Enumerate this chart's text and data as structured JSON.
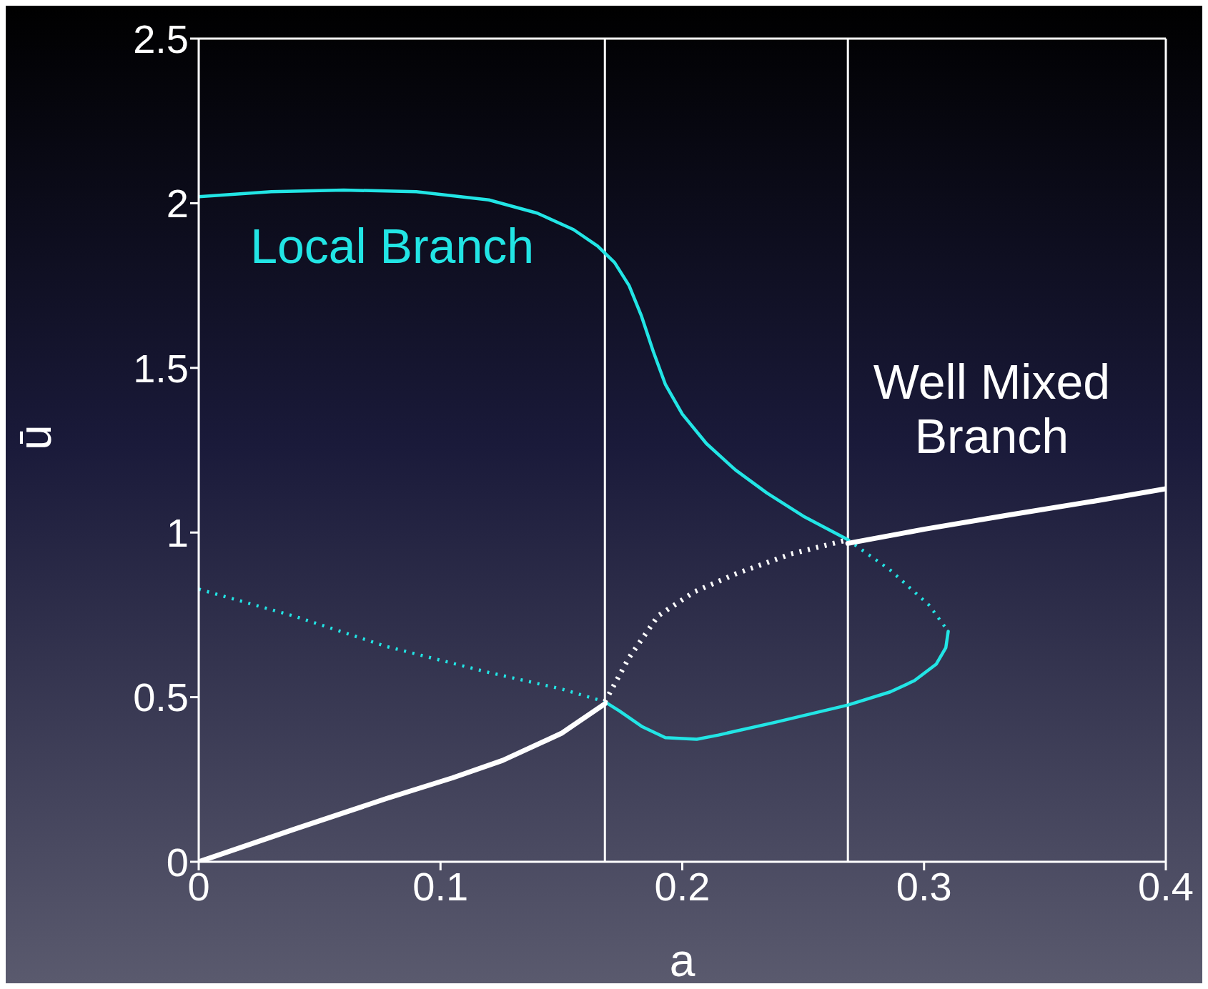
{
  "chart_data": {
    "type": "line",
    "xlabel": "a",
    "ylabel": "ū",
    "xlim": [
      0,
      0.4
    ],
    "xticks": [
      0,
      0.1,
      0.2,
      0.3,
      0.4
    ],
    "ylim": [
      0,
      2.5
    ],
    "yticks": [
      0,
      0.5,
      1,
      1.5,
      2,
      2.5
    ],
    "grid": false,
    "series": [
      {
        "color": "#22e5e5",
        "line_style": "solid",
        "x": [
          0,
          0.03,
          0.06,
          0.09,
          0.12,
          0.14,
          0.155,
          0.165,
          0.172,
          0.178,
          0.183,
          0.188,
          0.193,
          0.2,
          0.21,
          0.222,
          0.235,
          0.25,
          0.2685
        ],
        "values": [
          2.02,
          2.035,
          2.04,
          2.035,
          2.01,
          1.97,
          1.92,
          1.87,
          1.82,
          1.75,
          1.66,
          1.55,
          1.45,
          1.36,
          1.27,
          1.19,
          1.12,
          1.05,
          0.978
        ]
      },
      {
        "color": "#22e5e5",
        "line_style": "dotted",
        "x": [
          0.2685,
          0.286,
          0.302,
          0.31
        ],
        "values": [
          0.978,
          0.886,
          0.78,
          0.7
        ]
      },
      {
        "color": "#22e5e5",
        "line_style": "solid",
        "x": [
          0.31,
          0.309,
          0.305,
          0.296,
          0.286,
          0.2685,
          0.238,
          0.215,
          0.206,
          0.193,
          0.1835,
          0.174,
          0.168
        ],
        "values": [
          0.7,
          0.65,
          0.6,
          0.55,
          0.516,
          0.476,
          0.423,
          0.385,
          0.372,
          0.377,
          0.41,
          0.458,
          0.486
        ]
      },
      {
        "color": "#22e5e5",
        "line_style": "dotted",
        "x": [
          0,
          0.04,
          0.0776,
          0.12,
          0.15,
          0.168
        ],
        "values": [
          0.828,
          0.745,
          0.654,
          0.575,
          0.525,
          0.486
        ]
      },
      {
        "color": "#ffffff",
        "line_style": "solid",
        "x": [
          0,
          0.04,
          0.0776,
          0.105,
          0.1257,
          0.15,
          0.168
        ],
        "values": [
          0,
          0.1,
          0.192,
          0.255,
          0.308,
          0.39,
          0.48
        ]
      },
      {
        "color": "#ffffff",
        "line_style": "dotted",
        "x": [
          0.168,
          0.178,
          0.19,
          0.205,
          0.222,
          0.245,
          0.2685
        ],
        "values": [
          0.486,
          0.62,
          0.747,
          0.82,
          0.874,
          0.935,
          0.978
        ]
      },
      {
        "color": "#ffffff",
        "line_style": "solid",
        "x": [
          0.2685,
          0.3,
          0.334,
          0.37,
          0.4
        ],
        "values": [
          0.967,
          1.01,
          1.052,
          1.095,
          1.133
        ]
      }
    ],
    "ref_lines": [
      {
        "axis": "x",
        "value": 0.168,
        "color": "#ffffff"
      },
      {
        "axis": "x",
        "value": 0.2685,
        "color": "#ffffff"
      }
    ],
    "annotations": [
      "Local Branch",
      "Well Mixed\nBranch"
    ]
  }
}
